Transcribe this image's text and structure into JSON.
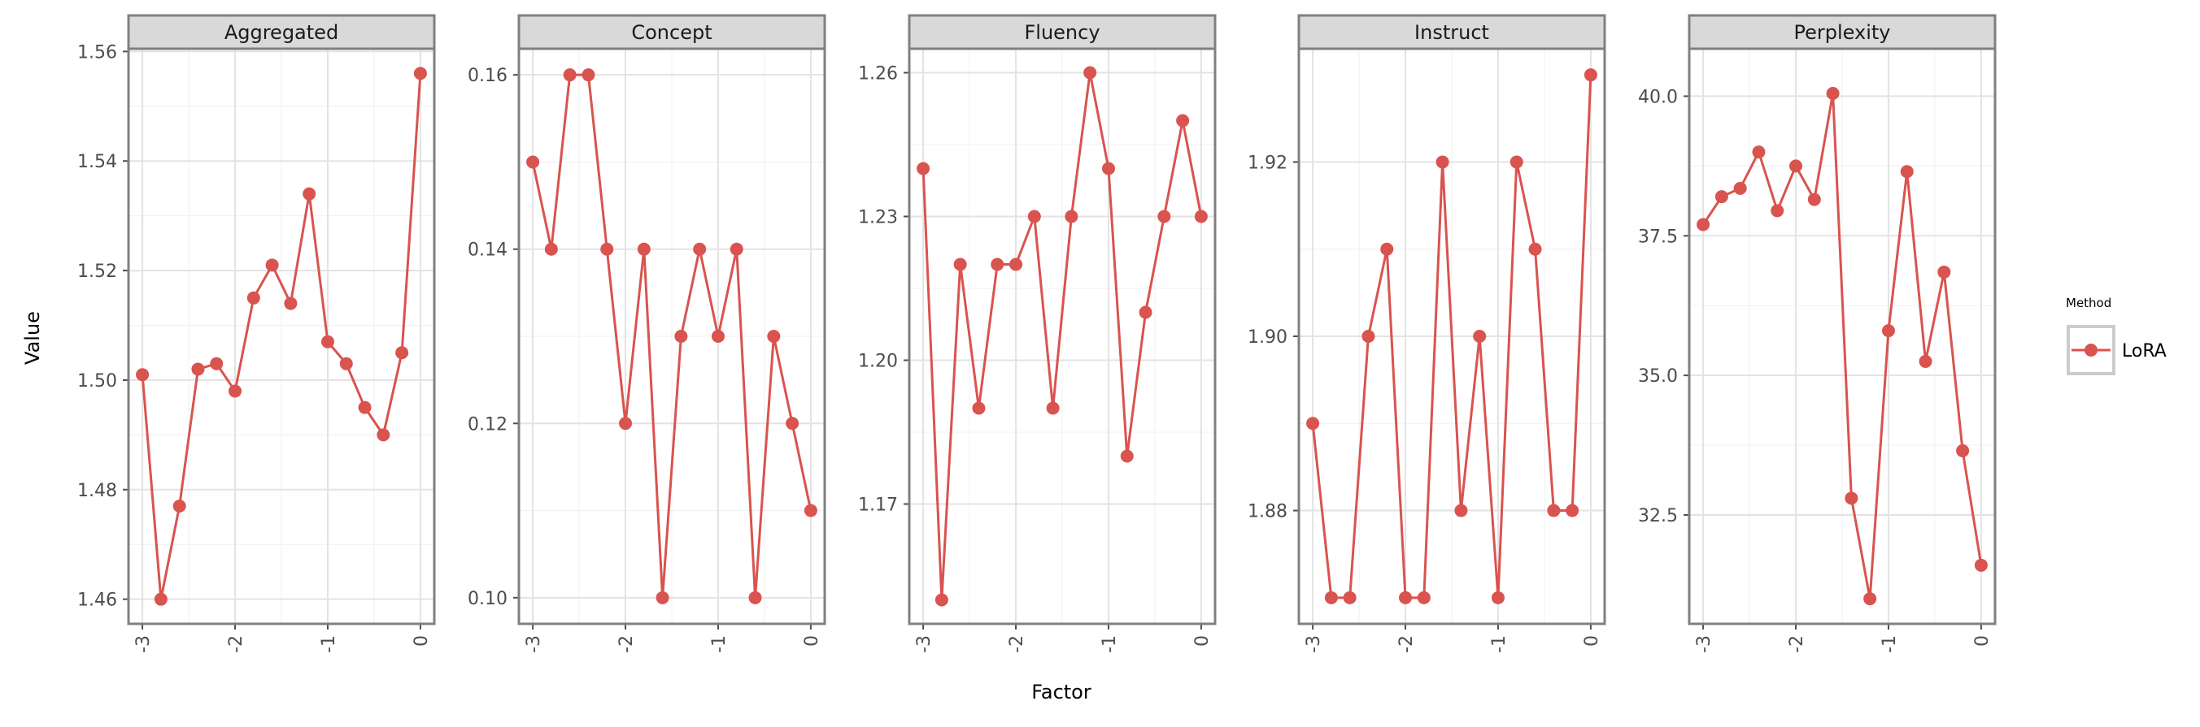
{
  "chart_data": {
    "type": "line",
    "xlabel": "Factor",
    "ylabel": "Value",
    "x": [
      -3.0,
      -2.8,
      -2.6,
      -2.4,
      -2.2,
      -2.0,
      -1.8,
      -1.6,
      -1.4,
      -1.2,
      -1.0,
      -0.8,
      -0.6,
      -0.4,
      -0.2,
      0.0
    ],
    "xticks": [
      -3,
      -2,
      -1,
      0
    ],
    "xtick_labels": [
      "-3",
      "-2",
      "-1",
      "0"
    ],
    "xlim": [
      -3.15,
      0.15
    ],
    "legend": {
      "title": "Method",
      "position": "right",
      "entries": [
        "LoRA"
      ]
    },
    "color": "#d9534f",
    "grid": true,
    "panels": [
      {
        "title": "Aggregated",
        "ylim": [
          1.4555,
          1.5605
        ],
        "yticks": [
          1.46,
          1.48,
          1.5,
          1.52,
          1.54,
          1.56
        ],
        "ytick_labels": [
          "1.46",
          "1.48",
          "1.50",
          "1.52",
          "1.54",
          "1.56"
        ],
        "series": [
          {
            "name": "LoRA",
            "values": [
              1.501,
              1.46,
              1.477,
              1.502,
              1.503,
              1.498,
              1.515,
              1.521,
              1.514,
              1.534,
              1.507,
              1.503,
              1.495,
              1.49,
              1.505,
              1.556
            ]
          }
        ]
      },
      {
        "title": "Concept",
        "ylim": [
          0.097,
          0.163
        ],
        "yticks": [
          0.1,
          0.12,
          0.14,
          0.16
        ],
        "ytick_labels": [
          "0.10",
          "0.12",
          "0.14",
          "0.16"
        ],
        "series": [
          {
            "name": "LoRA",
            "values": [
              0.15,
              0.14,
              0.16,
              0.16,
              0.14,
              0.12,
              0.14,
              0.1,
              0.13,
              0.14,
              0.13,
              0.14,
              0.1,
              0.13,
              0.12,
              0.11
            ]
          }
        ]
      },
      {
        "title": "Fluency",
        "ylim": [
          1.145,
          1.265
        ],
        "yticks": [
          1.17,
          1.2,
          1.23,
          1.26
        ],
        "ytick_labels": [
          "1.17",
          "1.20",
          "1.23",
          "1.26"
        ],
        "series": [
          {
            "name": "LoRA",
            "values": [
              1.24,
              1.15,
              1.22,
              1.19,
              1.22,
              1.22,
              1.23,
              1.19,
              1.23,
              1.26,
              1.24,
              1.18,
              1.21,
              1.23,
              1.25,
              1.23
            ]
          }
        ]
      },
      {
        "title": "Instruct",
        "ylim": [
          1.867,
          1.933
        ],
        "yticks": [
          1.88,
          1.9,
          1.92
        ],
        "ytick_labels": [
          "1.88",
          "1.90",
          "1.92"
        ],
        "series": [
          {
            "name": "LoRA",
            "values": [
              1.89,
              1.87,
              1.87,
              1.9,
              1.91,
              1.87,
              1.87,
              1.92,
              1.88,
              1.9,
              1.87,
              1.92,
              1.91,
              1.88,
              1.88,
              1.93
            ]
          }
        ]
      },
      {
        "title": "Perplexity",
        "ylim": [
          30.55,
          40.85
        ],
        "yticks": [
          32.5,
          35.0,
          37.5,
          40.0
        ],
        "ytick_labels": [
          "32.5",
          "35.0",
          "37.5",
          "40.0"
        ],
        "series": [
          {
            "name": "LoRA",
            "values": [
              37.7,
              38.2,
              38.35,
              39.0,
              37.95,
              38.75,
              38.15,
              40.05,
              32.8,
              31.0,
              35.8,
              38.65,
              35.25,
              36.85,
              33.65,
              31.6
            ]
          }
        ]
      }
    ]
  }
}
